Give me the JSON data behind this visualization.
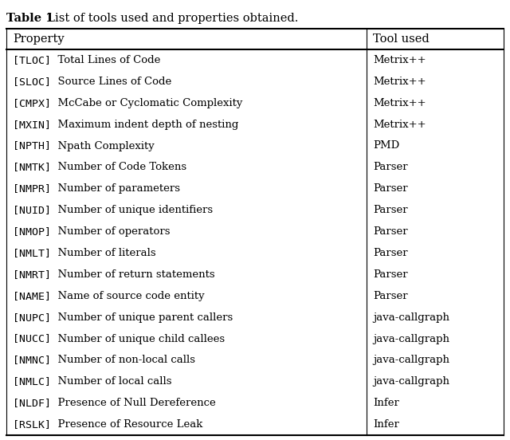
{
  "title_bold": "Table 1",
  "title_rest": "  List of tools used and properties obtained.",
  "col_headers": [
    "Property",
    "Tool used"
  ],
  "rows": [
    {
      "tag": "[TLOC]",
      "desc": "  Total Lines of Code",
      "tool": "Metrix++"
    },
    {
      "tag": "[SLOC]",
      "desc": "  Source Lines of Code",
      "tool": "Metrix++"
    },
    {
      "tag": "[CMPX]",
      "desc": "  McCabe or Cyclomatic Complexity",
      "tool": "Metrix++"
    },
    {
      "tag": "[MXIN]",
      "desc": "  Maximum indent depth of nesting",
      "tool": "Metrix++"
    },
    {
      "tag": "[NPTH]",
      "desc": "  Npath Complexity",
      "tool": "PMD"
    },
    {
      "tag": "[NMTK]",
      "desc": "  Number of Code Tokens",
      "tool": "Parser"
    },
    {
      "tag": "[NMPR]",
      "desc": "  Number of parameters",
      "tool": "Parser"
    },
    {
      "tag": "[NUID]",
      "desc": "  Number of unique identifiers",
      "tool": "Parser"
    },
    {
      "tag": "[NMOP]",
      "desc": "  Number of operators",
      "tool": "Parser"
    },
    {
      "tag": "[NMLT]",
      "desc": "  Number of literals",
      "tool": "Parser"
    },
    {
      "tag": "[NMRT]",
      "desc": "  Number of return statements",
      "tool": "Parser"
    },
    {
      "tag": "[NAME]",
      "desc": "  Name of source code entity",
      "tool": "Parser"
    },
    {
      "tag": "[NUPC]",
      "desc": "  Number of unique parent callers",
      "tool": "java-callgraph"
    },
    {
      "tag": "[NUCC]",
      "desc": "  Number of unique child callees",
      "tool": "java-callgraph"
    },
    {
      "tag": "[NMNC]",
      "desc": "  Number of non-local calls",
      "tool": "java-callgraph"
    },
    {
      "tag": "[NMLC]",
      "desc": "  Number of local calls",
      "tool": "java-callgraph"
    },
    {
      "tag": "[NLDF]",
      "desc": "  Presence of Null Dereference",
      "tool": "Infer"
    },
    {
      "tag": "[RSLK]",
      "desc": "  Presence of Resource Leak",
      "tool": "Infer"
    }
  ],
  "bg_color": "#ffffff",
  "text_color": "#000000",
  "title_fontsize": 10.5,
  "header_fontsize": 10.5,
  "row_fontsize": 9.5
}
